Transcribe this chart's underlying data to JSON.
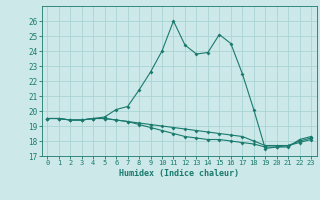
{
  "xlabel": "Humidex (Indice chaleur)",
  "x": [
    0,
    1,
    2,
    3,
    4,
    5,
    6,
    7,
    8,
    9,
    10,
    11,
    12,
    13,
    14,
    15,
    16,
    17,
    18,
    19,
    20,
    21,
    22,
    23
  ],
  "line1": [
    19.5,
    19.5,
    19.4,
    19.4,
    19.5,
    19.6,
    20.1,
    20.3,
    21.4,
    22.6,
    24.0,
    26.0,
    24.4,
    23.8,
    23.9,
    25.1,
    24.5,
    22.5,
    20.1,
    17.5,
    17.6,
    17.6,
    18.1,
    18.3
  ],
  "line2": [
    19.5,
    19.5,
    19.4,
    19.4,
    19.5,
    19.5,
    19.4,
    19.3,
    19.2,
    19.1,
    19.0,
    18.9,
    18.8,
    18.7,
    18.6,
    18.5,
    18.4,
    18.3,
    18.0,
    17.7,
    17.7,
    17.7,
    18.0,
    18.2
  ],
  "line3": [
    19.5,
    19.5,
    19.4,
    19.4,
    19.5,
    19.5,
    19.4,
    19.3,
    19.1,
    18.9,
    18.7,
    18.5,
    18.3,
    18.2,
    18.1,
    18.1,
    18.0,
    17.9,
    17.8,
    17.6,
    17.6,
    17.7,
    17.9,
    18.1
  ],
  "line_color": "#1a7a6e",
  "bg_color": "#cce8e8",
  "grid_color": "#aad4d4",
  "ylim": [
    17,
    27
  ],
  "xlim": [
    -0.5,
    23.5
  ],
  "yticks": [
    17,
    18,
    19,
    20,
    21,
    22,
    23,
    24,
    25,
    26
  ],
  "xticks": [
    0,
    1,
    2,
    3,
    4,
    5,
    6,
    7,
    8,
    9,
    10,
    11,
    12,
    13,
    14,
    15,
    16,
    17,
    18,
    19,
    20,
    21,
    22,
    23
  ]
}
